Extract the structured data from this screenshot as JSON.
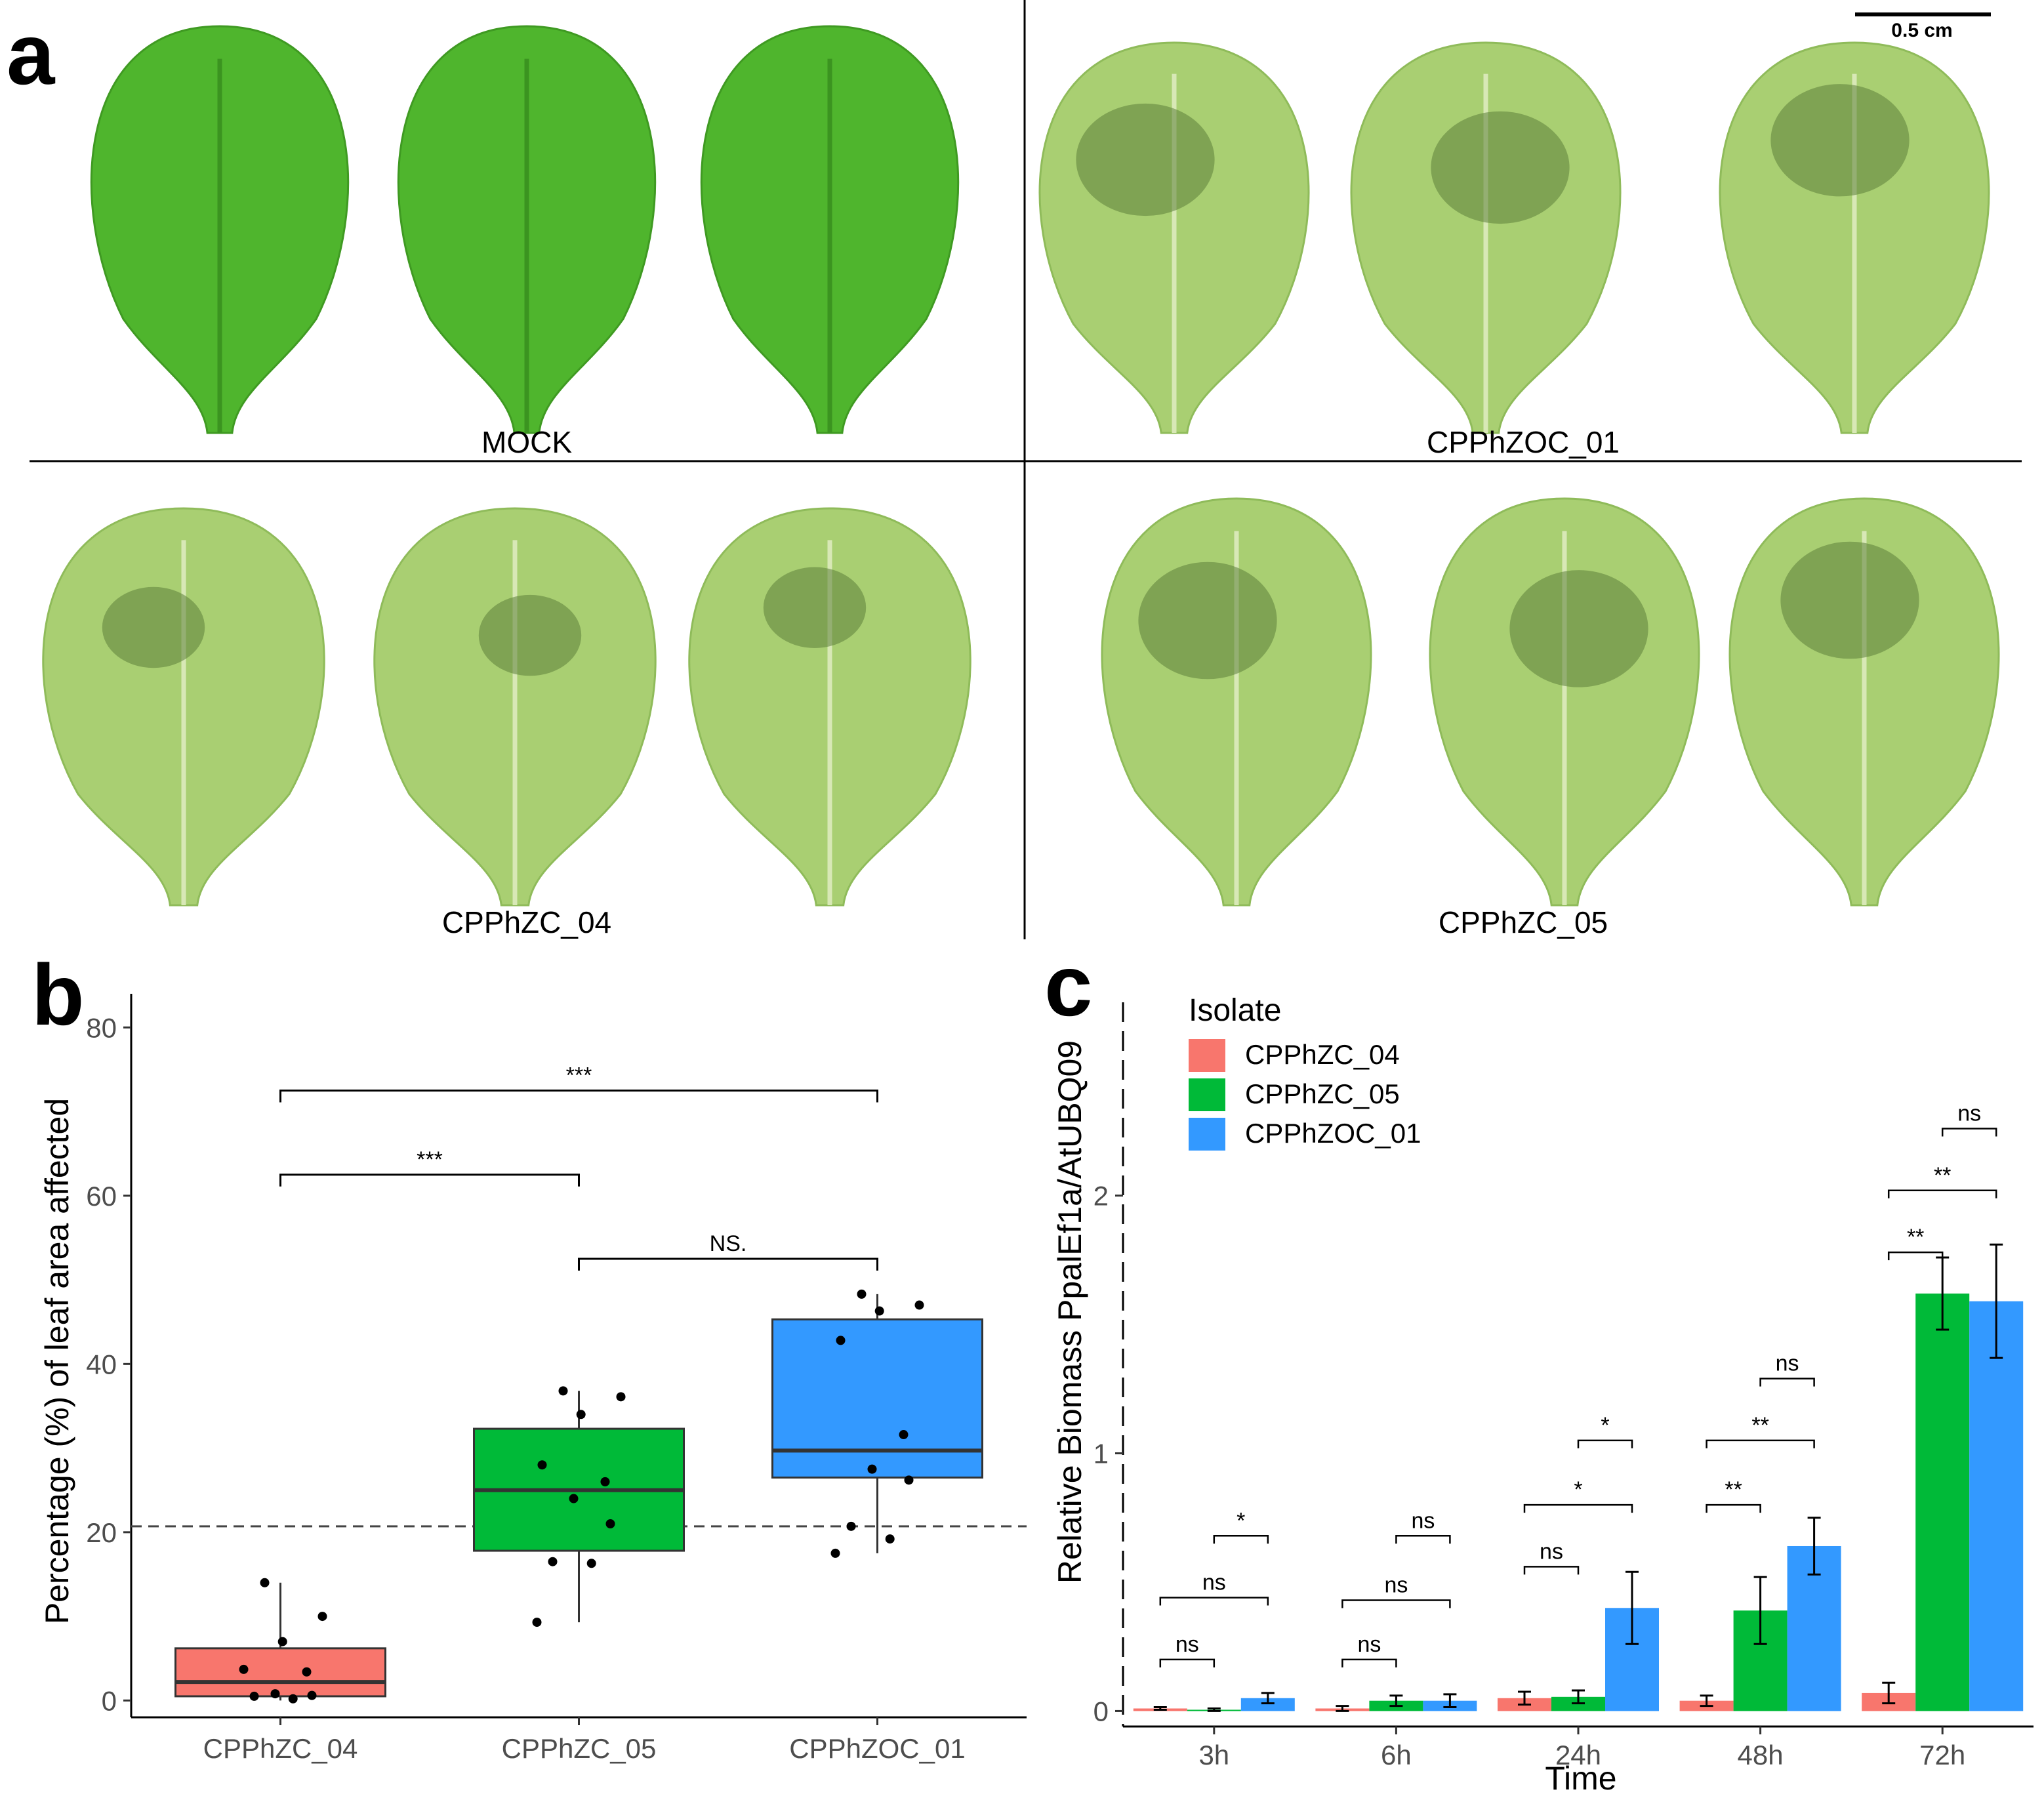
{
  "panel_labels": {
    "a": "a",
    "b": "b",
    "c": "c"
  },
  "panel_a": {
    "scale_bar": "0.5 cm",
    "groups": [
      {
        "label": "MOCK",
        "lesion": "none"
      },
      {
        "label": "CPPhZOC_01",
        "lesion": "large"
      },
      {
        "label": "CPPhZC_04",
        "lesion": "small"
      },
      {
        "label": "CPPhZC_05",
        "lesion": "large"
      }
    ],
    "colors": {
      "healthy_leaf": "#4fb52d",
      "infected_leaf": "#a9cf72",
      "lesion": "#5c7f3a"
    }
  },
  "chart_data": [
    {
      "id": "b",
      "type": "boxplot",
      "ylabel": "Percentage (%) of leaf area affected",
      "ylim": [
        -2,
        84
      ],
      "yticks": [
        0,
        20,
        40,
        60,
        80
      ],
      "ytick_labels": [
        "0",
        "20",
        "40",
        "60",
        "80"
      ],
      "reference_line": 20.7,
      "categories": [
        "CPPhZC_04",
        "CPPhZC_05",
        "CPPhZOC_01"
      ],
      "colors": [
        "#f8766d",
        "#00ba38",
        "#3399ff"
      ],
      "boxes": [
        {
          "min": 0,
          "q1": 0.5,
          "median": 2.2,
          "q3": 6.2,
          "max": 14
        },
        {
          "min": 9.3,
          "q1": 17.8,
          "median": 25,
          "q3": 32.3,
          "max": 36.8
        },
        {
          "min": 17.5,
          "q1": 26.5,
          "median": 29.7,
          "q3": 45.3,
          "max": 48.3
        }
      ],
      "points": [
        [
          14,
          10,
          7,
          3.7,
          3.4,
          0.8,
          0.6,
          0.5,
          0.2
        ],
        [
          36.8,
          36.1,
          34,
          28,
          26,
          24,
          21,
          16.5,
          16.3,
          9.3
        ],
        [
          48.3,
          47,
          46.3,
          42.8,
          31.6,
          27.5,
          26.2,
          20.7,
          19.2,
          17.5
        ]
      ],
      "significance": [
        {
          "from": 0,
          "to": 2,
          "y": 72.5,
          "label": "***"
        },
        {
          "from": 0,
          "to": 1,
          "y": 62.5,
          "label": "***"
        },
        {
          "from": 1,
          "to": 2,
          "y": 52.5,
          "label": "NS."
        }
      ]
    },
    {
      "id": "c",
      "type": "bar",
      "xlabel": "Time",
      "ylabel": "Relative Biomass PpalEf1a/AtUBQ09",
      "legend_title": "Isolate",
      "legend_position": "top-left",
      "ylim": [
        -0.06,
        2.75
      ],
      "yticks": [
        0,
        1,
        2
      ],
      "ytick_labels": [
        "0",
        "1",
        "2"
      ],
      "categories": [
        "3h",
        "6h",
        "24h",
        "48h",
        "72h"
      ],
      "series": [
        {
          "name": "CPPhZC_04",
          "color": "#f8766d",
          "values": [
            0.01,
            0.01,
            0.05,
            0.04,
            0.07
          ],
          "errors": [
            0.005,
            0.01,
            0.025,
            0.02,
            0.04
          ]
        },
        {
          "name": "CPPhZC_05",
          "color": "#00ba38",
          "values": [
            0.005,
            0.04,
            0.055,
            0.39,
            1.62
          ],
          "errors": [
            0.005,
            0.02,
            0.025,
            0.13,
            0.14
          ]
        },
        {
          "name": "CPPhZOC_01",
          "color": "#3399ff",
          "values": [
            0.05,
            0.04,
            0.4,
            0.64,
            1.59
          ],
          "errors": [
            0.02,
            0.025,
            0.14,
            0.11,
            0.22
          ]
        }
      ],
      "significance": [
        {
          "cat": 0,
          "from": 0,
          "to": 1,
          "y": 0.2,
          "label": "ns"
        },
        {
          "cat": 0,
          "from": 0,
          "to": 2,
          "y": 0.44,
          "label": "ns"
        },
        {
          "cat": 0,
          "from": 1,
          "to": 2,
          "y": 0.68,
          "label": "*"
        },
        {
          "cat": 1,
          "from": 0,
          "to": 1,
          "y": 0.2,
          "label": "ns"
        },
        {
          "cat": 1,
          "from": 0,
          "to": 2,
          "y": 0.43,
          "label": "ns"
        },
        {
          "cat": 1,
          "from": 1,
          "to": 2,
          "y": 0.68,
          "label": "ns"
        },
        {
          "cat": 2,
          "from": 0,
          "to": 1,
          "y": 0.56,
          "label": "ns"
        },
        {
          "cat": 2,
          "from": 0,
          "to": 2,
          "y": 0.8,
          "label": "*"
        },
        {
          "cat": 2,
          "from": 1,
          "to": 2,
          "y": 1.05,
          "label": "*"
        },
        {
          "cat": 3,
          "from": 0,
          "to": 1,
          "y": 0.8,
          "label": "**"
        },
        {
          "cat": 3,
          "from": 0,
          "to": 2,
          "y": 1.05,
          "label": "**"
        },
        {
          "cat": 3,
          "from": 1,
          "to": 2,
          "y": 1.29,
          "label": "ns"
        },
        {
          "cat": 4,
          "from": 0,
          "to": 1,
          "y": 1.78,
          "label": "**"
        },
        {
          "cat": 4,
          "from": 0,
          "to": 2,
          "y": 2.02,
          "label": "**"
        },
        {
          "cat": 4,
          "from": 1,
          "to": 2,
          "y": 2.26,
          "label": "ns"
        }
      ]
    }
  ]
}
